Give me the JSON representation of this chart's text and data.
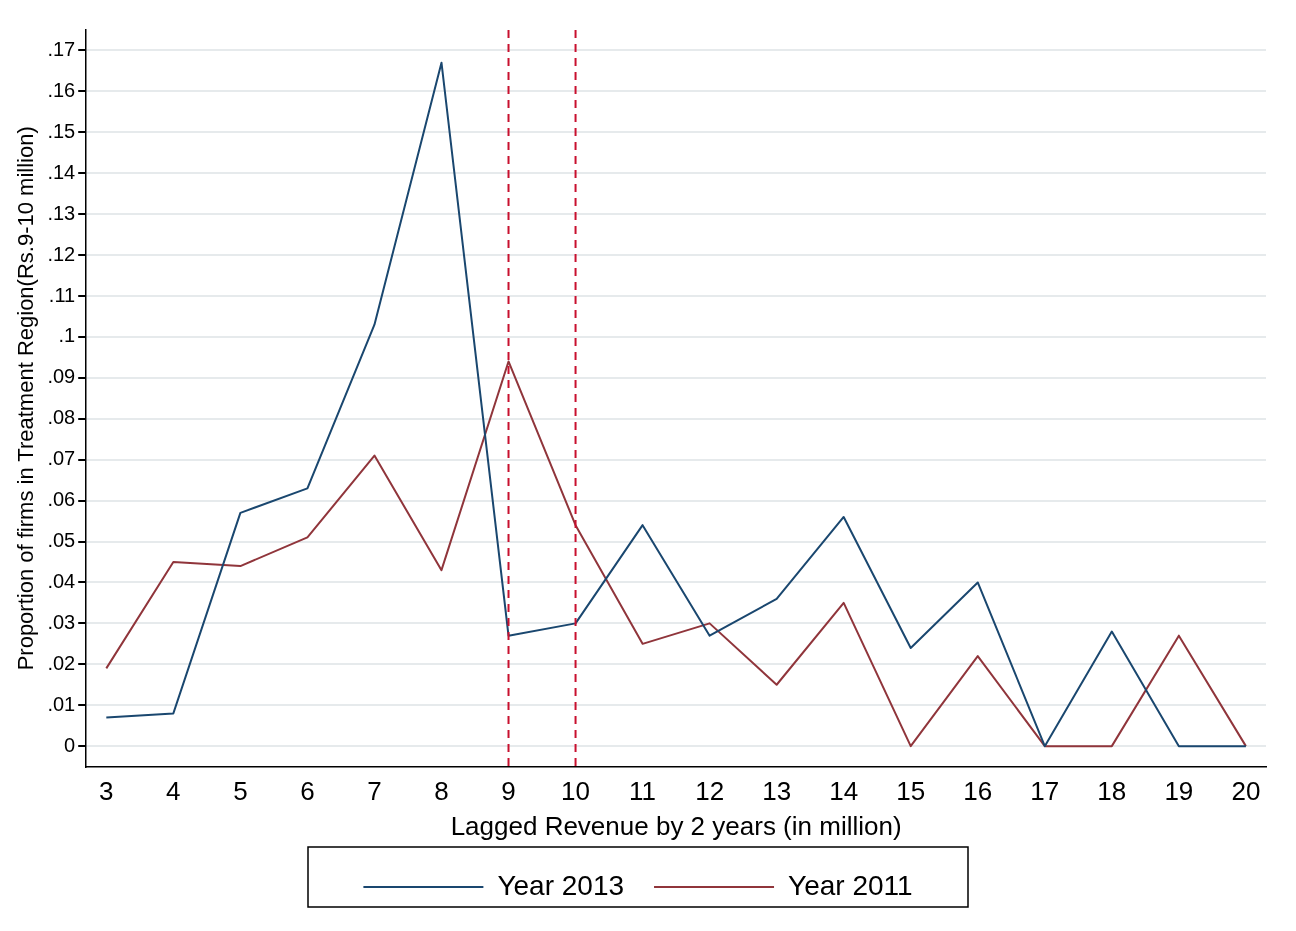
{
  "chart_data": {
    "type": "line",
    "xlabel": "Lagged Revenue by 2 years (in million)",
    "ylabel": "Proportion of firms in Treatment Region(Rs.9-10 million)",
    "x": [
      3,
      4,
      5,
      6,
      7,
      8,
      9,
      10,
      11,
      12,
      13,
      14,
      15,
      16,
      17,
      18,
      19,
      20
    ],
    "series": [
      {
        "name": "Year 2013",
        "color": "#1a476f",
        "values": [
          0.007,
          0.008,
          0.057,
          0.063,
          0.103,
          0.167,
          0.027,
          0.03,
          0.054,
          0.027,
          0.036,
          0.056,
          0.024,
          0.04,
          0,
          0.028,
          0,
          0
        ]
      },
      {
        "name": "Year 2011",
        "color": "#90353b",
        "values": [
          0.019,
          0.045,
          0.044,
          0.051,
          0.071,
          0.043,
          0.094,
          0.054,
          0.025,
          0.03,
          0.015,
          0.035,
          0,
          0.022,
          0,
          0,
          0.027,
          0
        ]
      }
    ],
    "xlim": [
      2.7,
      20.3
    ],
    "xticks": [
      3,
      4,
      5,
      6,
      7,
      8,
      9,
      10,
      11,
      12,
      13,
      14,
      15,
      16,
      17,
      18,
      19,
      20
    ],
    "ylim": [
      -0.005,
      0.175
    ],
    "yticks": [
      0,
      {
        "value": 0.01,
        "label": ".01"
      },
      {
        "value": 0.02,
        "label": ".02"
      },
      {
        "value": 0.03,
        "label": ".03"
      },
      {
        "value": 0.04,
        "label": ".04"
      },
      {
        "value": 0.05,
        "label": ".05"
      },
      {
        "value": 0.06,
        "label": ".06"
      },
      {
        "value": 0.07,
        "label": ".07"
      },
      {
        "value": 0.08,
        "label": ".08"
      },
      {
        "value": 0.09,
        "label": ".09"
      },
      {
        "value": 0.1,
        "label": ".1"
      },
      {
        "value": 0.11,
        "label": ".11"
      },
      {
        "value": 0.12,
        "label": ".12"
      },
      {
        "value": 0.13,
        "label": ".13"
      },
      {
        "value": 0.14,
        "label": ".14"
      },
      {
        "value": 0.15,
        "label": ".15"
      },
      {
        "value": 0.16,
        "label": ".16"
      },
      {
        "value": 0.17,
        "label": ".17"
      }
    ],
    "ref_lines": [
      {
        "axis": "x",
        "value": 9,
        "color": "#c8102e",
        "line_style": "dashed"
      },
      {
        "axis": "x",
        "value": 10,
        "color": "#c8102e",
        "line_style": "dashed"
      }
    ],
    "grid": "y",
    "legend": "bottom",
    "marker": "none",
    "line_style": "solid"
  }
}
